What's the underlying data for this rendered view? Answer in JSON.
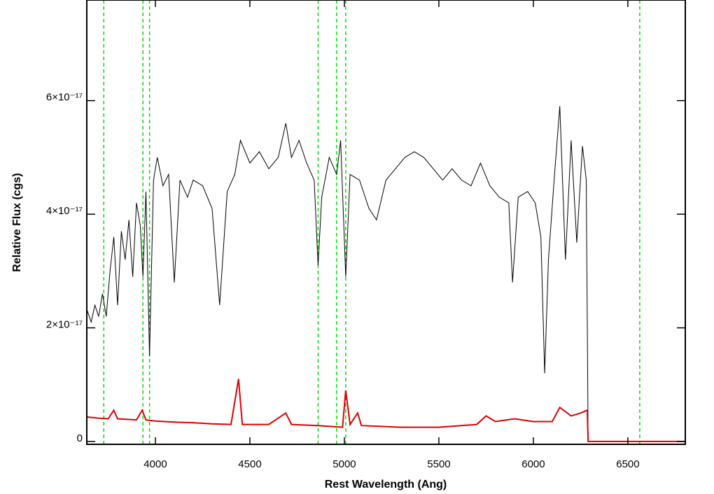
{
  "chart_data": {
    "type": "line",
    "xlabel": "Rest Wavelength (Ang)",
    "ylabel": "Relative Flux (cgs)",
    "xlim": [
      3637,
      6804
    ],
    "ylim": [
      -5e-19,
      7.77e-17
    ],
    "xticks": [
      4000,
      4500,
      5000,
      5500,
      6000,
      6500
    ],
    "yticks": [
      0,
      {
        "value": 2e-17,
        "label": "2×10⁻¹⁷"
      },
      {
        "value": 4e-17,
        "label": "4×10⁻¹⁷"
      },
      {
        "value": 6e-17,
        "label": "6×10⁻¹⁷"
      }
    ],
    "vlines": {
      "color": "#00dd00",
      "style": "dashed",
      "x": [
        3727,
        3934,
        3969,
        4861,
        4959,
        5007,
        6563
      ]
    },
    "series": [
      {
        "color": "#000000",
        "x": [
          3640,
          3660,
          3680,
          3700,
          3720,
          3740,
          3760,
          3780,
          3800,
          3820,
          3840,
          3860,
          3880,
          3900,
          3920,
          3934,
          3950,
          3969,
          3990,
          4010,
          4040,
          4070,
          4100,
          4130,
          4170,
          4200,
          4250,
          4300,
          4340,
          4380,
          4420,
          4450,
          4500,
          4550,
          4600,
          4650,
          4690,
          4720,
          4760,
          4800,
          4840,
          4861,
          4880,
          4920,
          4959,
          4980,
          5007,
          5030,
          5080,
          5130,
          5170,
          5220,
          5270,
          5320,
          5370,
          5420,
          5470,
          5520,
          5570,
          5620,
          5670,
          5720,
          5770,
          5820,
          5870,
          5890,
          5920,
          5970,
          6010,
          6040,
          6060,
          6080,
          6110,
          6140,
          6170,
          6200,
          6230,
          6260,
          6280,
          6290,
          6800
        ],
        "values": [
          2.3e-17,
          2.1e-17,
          2.4e-17,
          2.2e-17,
          2.6e-17,
          2.2e-17,
          3e-17,
          3.6e-17,
          2.4e-17,
          3.7e-17,
          3.2e-17,
          3.9e-17,
          2.9e-17,
          4.2e-17,
          3.8e-17,
          2.9e-17,
          4.4e-17,
          1.5e-17,
          4.6e-17,
          5e-17,
          4.5e-17,
          4.7e-17,
          2.8e-17,
          4.6e-17,
          4.3e-17,
          4.6e-17,
          4.5e-17,
          4.1e-17,
          2.4e-17,
          4.4e-17,
          4.7e-17,
          5.3e-17,
          4.9e-17,
          5.1e-17,
          4.8e-17,
          5e-17,
          5.6e-17,
          5e-17,
          5.3e-17,
          4.9e-17,
          4.6e-17,
          3.1e-17,
          4.3e-17,
          5e-17,
          4.7e-17,
          5.3e-17,
          2.9e-17,
          4.7e-17,
          4.6e-17,
          4.1e-17,
          3.9e-17,
          4.6e-17,
          4.8e-17,
          5e-17,
          5.1e-17,
          5e-17,
          4.8e-17,
          4.6e-17,
          4.8e-17,
          4.6e-17,
          4.5e-17,
          4.9e-17,
          4.5e-17,
          4.3e-17,
          4.2e-17,
          2.8e-17,
          4.3e-17,
          4.4e-17,
          4.2e-17,
          3.6e-17,
          1.2e-17,
          3.2e-17,
          4.6e-17,
          5.9e-17,
          3.2e-17,
          5.3e-17,
          3.5e-17,
          5.2e-17,
          4.6e-17,
          0,
          0
        ]
      },
      {
        "color": "#dd0000",
        "x": [
          3640,
          3700,
          3750,
          3780,
          3800,
          3900,
          3930,
          3950,
          4000,
          4100,
          4200,
          4300,
          4400,
          4440,
          4460,
          4600,
          4690,
          4720,
          4860,
          4990,
          5007,
          5030,
          5070,
          5090,
          5300,
          5500,
          5700,
          5750,
          5800,
          5900,
          6000,
          6100,
          6140,
          6200,
          6250,
          6285,
          6290,
          6800
        ],
        "values": [
          4.3e-18,
          4.1e-18,
          4e-18,
          5.5e-18,
          4e-18,
          3.8e-18,
          5.5e-18,
          3.8e-18,
          3.6e-18,
          3.4e-18,
          3.3e-18,
          3.1e-18,
          3e-18,
          1.1e-17,
          3e-18,
          3e-18,
          5e-18,
          3e-18,
          2.8e-18,
          2.5e-18,
          9e-18,
          3e-18,
          5e-18,
          2.8e-18,
          2.5e-18,
          2.5e-18,
          3e-18,
          4.5e-18,
          3.5e-18,
          4e-18,
          3.5e-18,
          3.5e-18,
          6e-18,
          4.5e-18,
          5e-18,
          5.5e-18,
          0,
          0
        ]
      }
    ]
  }
}
